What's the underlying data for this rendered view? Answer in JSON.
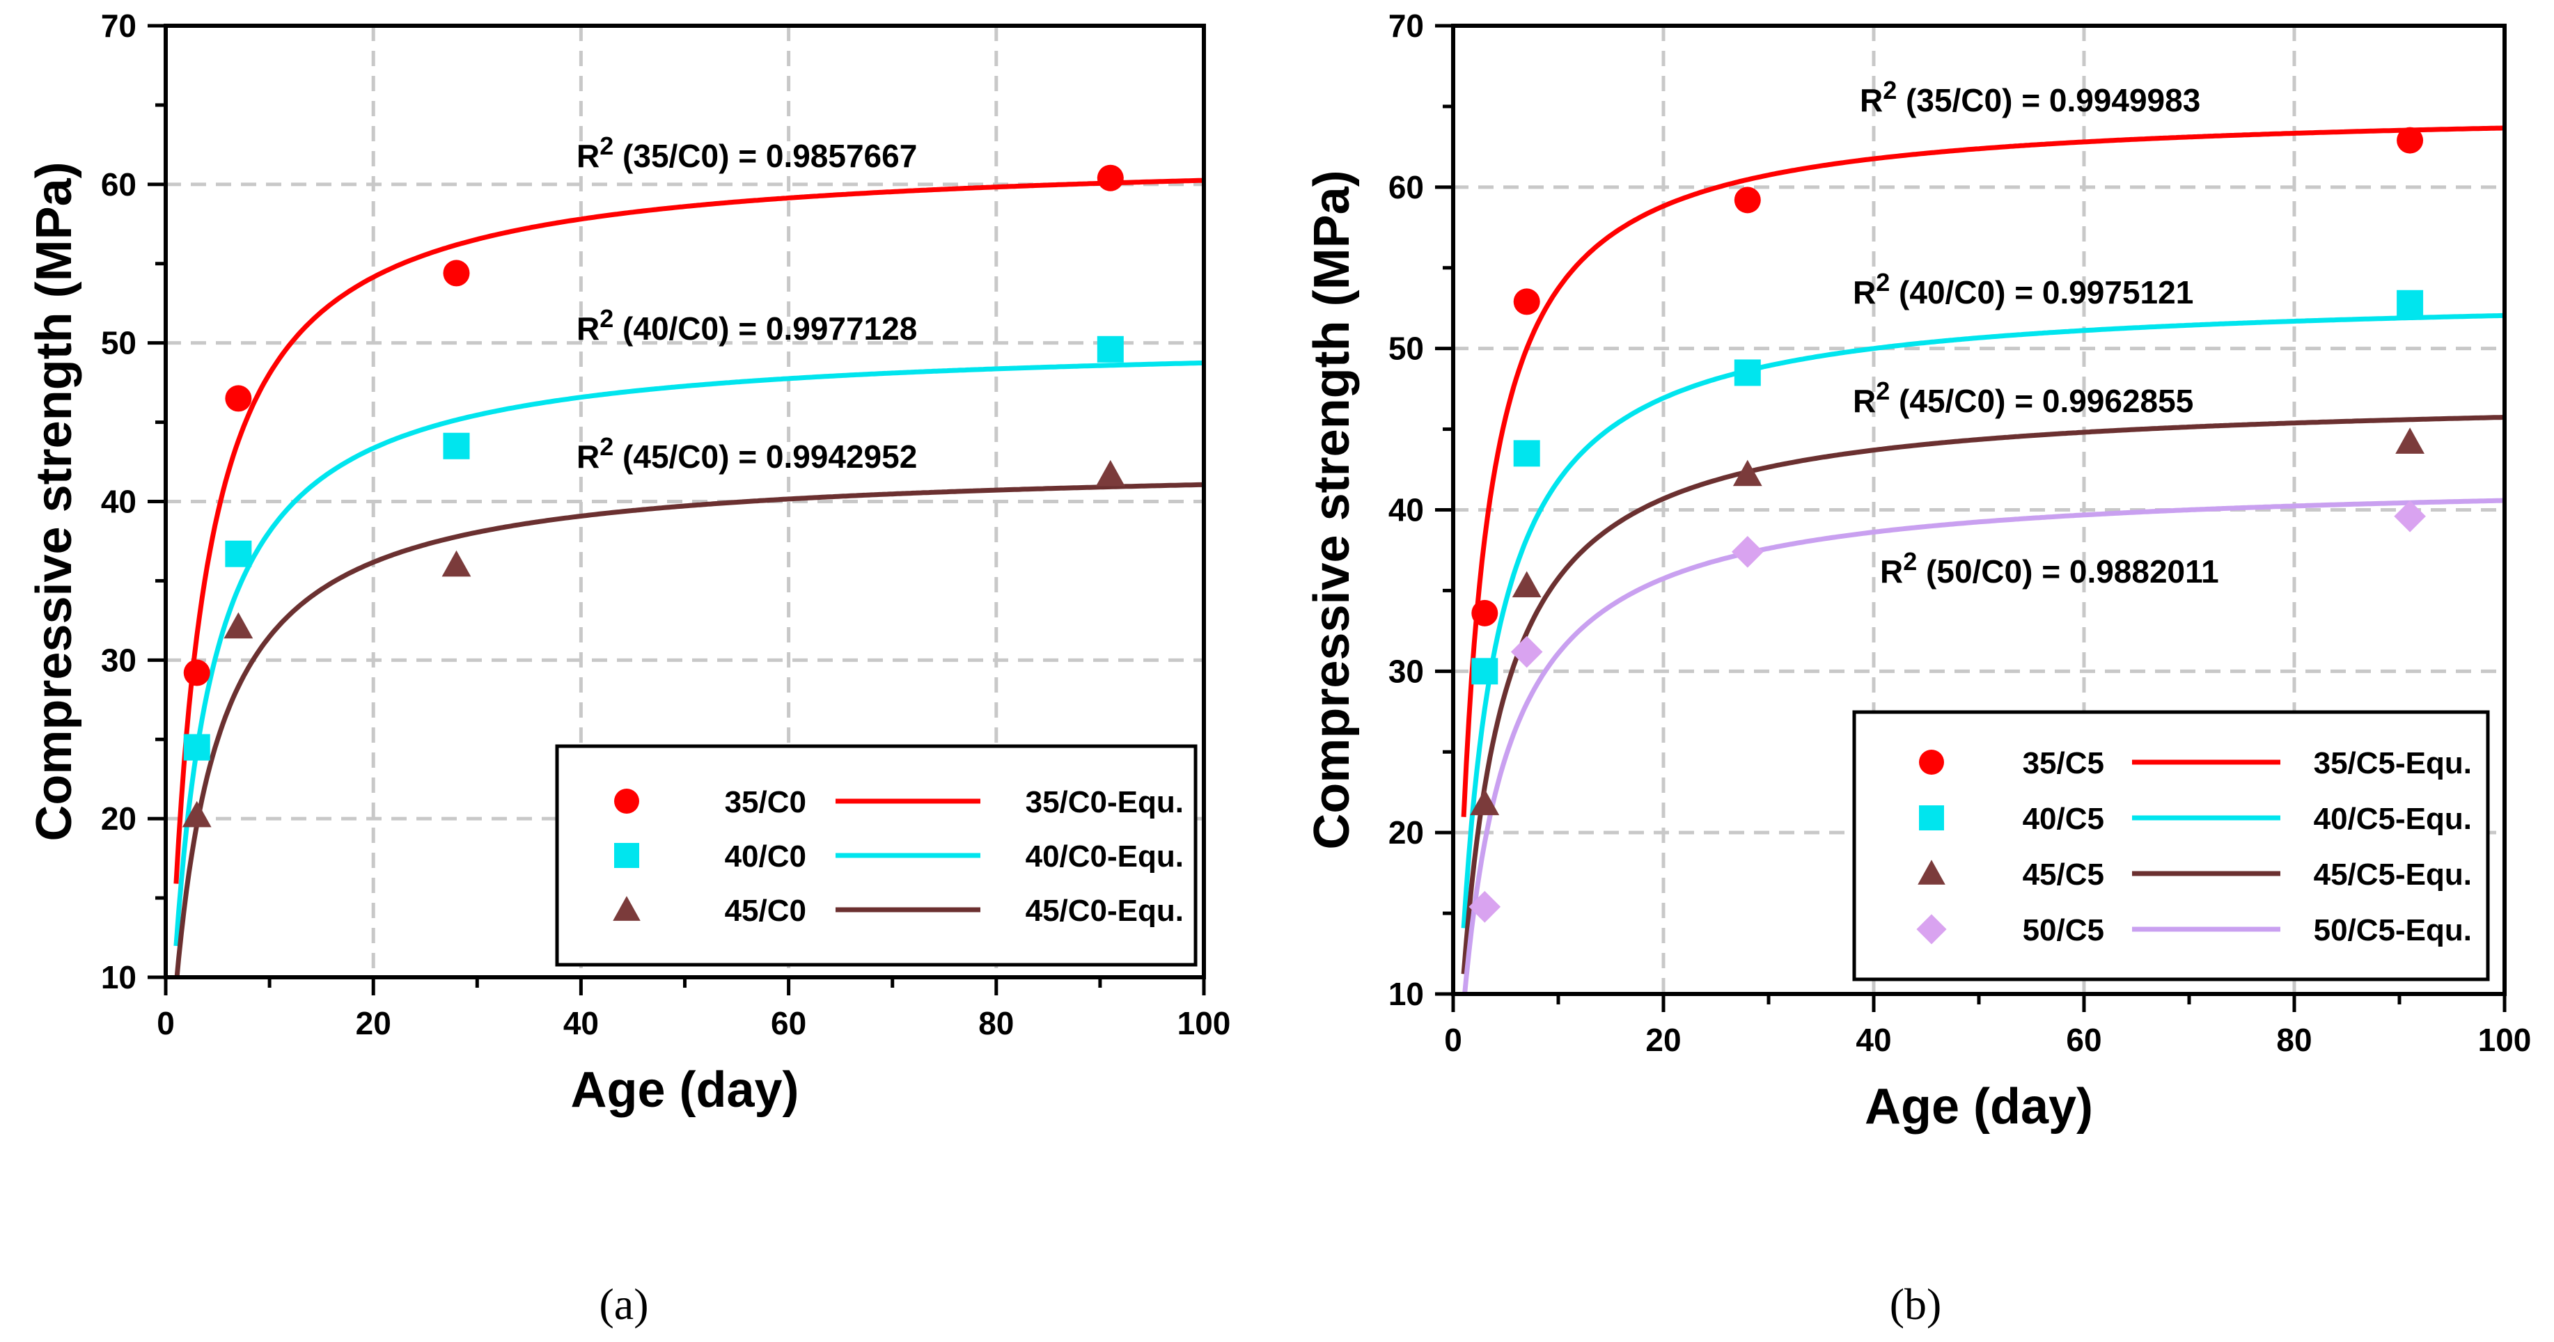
{
  "chart_data": [
    {
      "type": "scatter",
      "panel_label": "(a)",
      "xlabel": "Age (day)",
      "ylabel": "Compressive strength (MPa)",
      "xlim": [
        0,
        100
      ],
      "ylim": [
        10,
        70
      ],
      "xticks": [
        "0",
        "20",
        "40",
        "60",
        "80",
        "100"
      ],
      "yticks": [
        "10",
        "20",
        "30",
        "40",
        "50",
        "60",
        "70"
      ],
      "grid": true,
      "legend_position": "bottom-right",
      "series": [
        {
          "name": "35/C0",
          "marker": "circle",
          "color": "#ff0000",
          "x": [
            3,
            7,
            28,
            91
          ],
          "y": [
            29.2,
            46.5,
            54.4,
            60.4
          ],
          "fit_name": "35/C0-Equ.",
          "fit": {
            "a": 62.0,
            "b": 2.9
          },
          "fit_color": "#ff0000"
        },
        {
          "name": "40/C0",
          "marker": "square",
          "color": "#00e5ee",
          "x": [
            3,
            7,
            28,
            91
          ],
          "y": [
            24.5,
            36.7,
            43.5,
            49.6
          ],
          "fit_name": "40/C0-Equ.",
          "fit": {
            "a": 50.3,
            "b": 3.2
          },
          "fit_color": "#00e5ee"
        },
        {
          "name": "45/C0",
          "marker": "triangle",
          "color": "#7b3b3b",
          "x": [
            3,
            7,
            28,
            91
          ],
          "y": [
            20.2,
            32.1,
            36.0,
            41.7
          ],
          "fit_name": "45/C0-Equ.",
          "fit": {
            "a": 42.5,
            "b": 3.5
          },
          "fit_color": "#6b3030"
        }
      ],
      "annotations": [
        {
          "prefix": "R",
          "sup": "2",
          "text": " (35/C0) = 0.9857667"
        },
        {
          "prefix": "R",
          "sup": "2",
          "text": " (40/C0) = 0.9977128"
        },
        {
          "prefix": "R",
          "sup": "2",
          "text": " (45/C0) = 0.9942952"
        }
      ]
    },
    {
      "type": "scatter",
      "panel_label": "(b)",
      "xlabel": "Age (day)",
      "ylabel": "Compressive strength (MPa)",
      "xlim": [
        0,
        100
      ],
      "ylim": [
        10,
        70
      ],
      "xticks": [
        "0",
        "20",
        "40",
        "60",
        "80",
        "100"
      ],
      "yticks": [
        "10",
        "20",
        "30",
        "40",
        "50",
        "60",
        "70"
      ],
      "grid": true,
      "legend_position": "bottom-right",
      "series": [
        {
          "name": "35/C5",
          "marker": "circle",
          "color": "#ff0000",
          "x": [
            3,
            7,
            28,
            91
          ],
          "y": [
            33.6,
            52.9,
            59.2,
            62.9
          ],
          "fit_name": "35/C5-Equ.",
          "fit": {
            "a": 65.0,
            "b": 2.1
          },
          "fit_color": "#ff0000"
        },
        {
          "name": "40/C5",
          "marker": "square",
          "color": "#00e5ee",
          "x": [
            3,
            7,
            28,
            91
          ],
          "y": [
            30.0,
            43.5,
            48.5,
            52.8
          ],
          "fit_name": "40/C5-Equ.",
          "fit": {
            "a": 53.5,
            "b": 2.8
          },
          "fit_color": "#00e5ee"
        },
        {
          "name": "45/C5",
          "marker": "triangle",
          "color": "#7b3b3b",
          "x": [
            3,
            7,
            28,
            91
          ],
          "y": [
            21.8,
            35.3,
            42.2,
            44.2
          ],
          "fit_name": "45/C5-Equ.",
          "fit": {
            "a": 47.2,
            "b": 3.2
          },
          "fit_color": "#6b3030"
        },
        {
          "name": "50/C5",
          "marker": "diamond",
          "color": "#d9a3f0",
          "x": [
            3,
            7,
            28,
            91
          ],
          "y": [
            15.4,
            31.2,
            37.4,
            39.6
          ],
          "fit_name": "50/C5-Equ.",
          "fit": {
            "a": 42.0,
            "b": 3.5
          },
          "fit_color": "#c9a0f0"
        }
      ],
      "annotations": [
        {
          "prefix": "R",
          "sup": "2",
          "text": " (35/C0) = 0.9949983"
        },
        {
          "prefix": "R",
          "sup": "2",
          "text": " (40/C0) = 0.9975121"
        },
        {
          "prefix": "R",
          "sup": "2",
          "text": " (45/C0) = 0.9962855"
        },
        {
          "prefix": "R",
          "sup": "2",
          "text": " (50/C0) = 0.9882011"
        }
      ]
    }
  ]
}
